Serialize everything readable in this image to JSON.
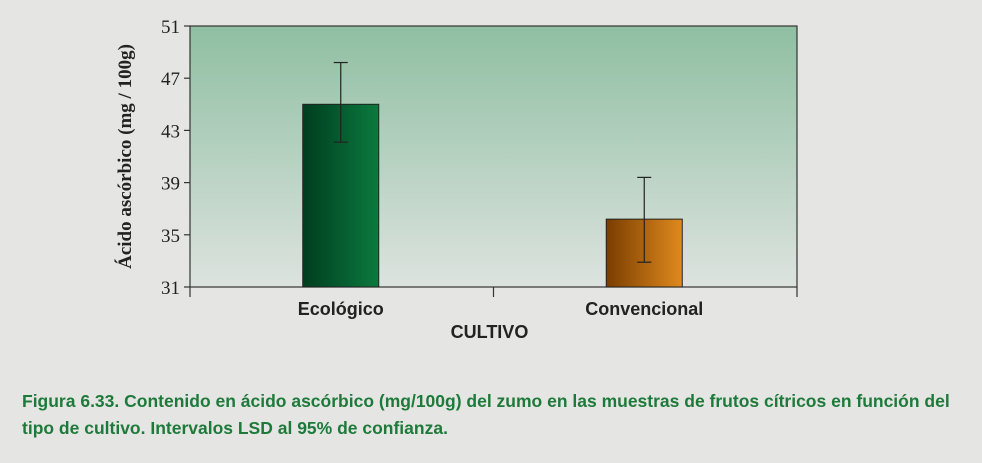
{
  "chart_data": {
    "type": "bar",
    "categories": [
      "Ecológico",
      "Convencional"
    ],
    "values": [
      45.0,
      36.2
    ],
    "error_bars": [
      {
        "low": 42.1,
        "high": 48.2
      },
      {
        "low": 32.9,
        "high": 39.4
      }
    ],
    "ylabel": "Ácido ascórbico (mg / 100g)",
    "xlabel": "CULTIVO",
    "ylim": [
      31,
      51
    ],
    "yticks": [
      31,
      35,
      39,
      43,
      47,
      51
    ],
    "colors": {
      "Ecológico": [
        "#003d1f",
        "#0b7a3e"
      ],
      "Convencional": [
        "#7a3d00",
        "#e08a1e"
      ],
      "plot_background_top": "#8fbfa2",
      "plot_background_bottom": "#dde3df"
    }
  },
  "caption": "Figura 6.33. Contenido en ácido ascórbico (mg/100g) del zumo en las muestras de frutos cítricos en función del tipo de cultivo. Intervalos LSD al 95% de confianza."
}
